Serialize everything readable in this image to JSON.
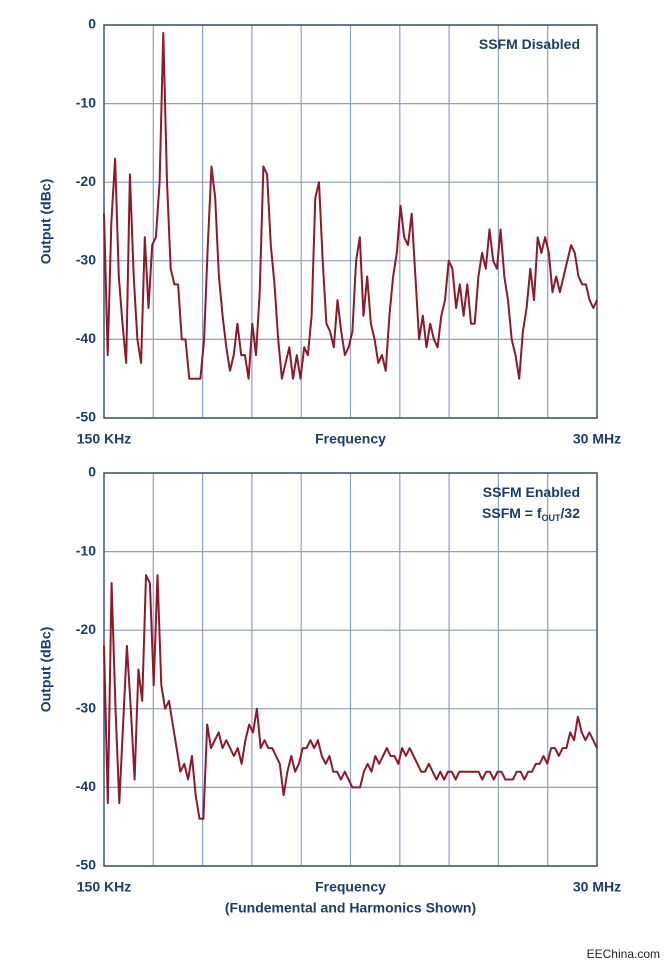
{
  "chart_data": [
    {
      "type": "line",
      "ylabel": "Output (dBc)",
      "xlabel": [
        "Frequency"
      ],
      "x_end_labels": [
        "150 KHz",
        "30 MHz"
      ],
      "annotations": [
        {
          "text": "SSFM Disabled"
        }
      ],
      "ylim": [
        -50,
        0
      ],
      "yticks": [
        0,
        -10,
        -20,
        -30,
        -40,
        -50
      ],
      "x_divisions": 10,
      "grid": true,
      "color": "#8b1a2b",
      "values": [
        -24,
        -42,
        -25,
        -17,
        -32,
        -38,
        -43,
        -19,
        -32,
        -40,
        -43,
        -27,
        -36,
        -28,
        -27,
        -20,
        -1,
        -20,
        -31,
        -33,
        -33,
        -40,
        -40,
        -45,
        -45,
        -45,
        -45,
        -40,
        -28,
        -18,
        -22,
        -32,
        -37,
        -41,
        -44,
        -42,
        -38,
        -42,
        -42,
        -45,
        -38,
        -42,
        -34,
        -18,
        -19,
        -28,
        -33,
        -40,
        -45,
        -43,
        -41,
        -45,
        -42,
        -45,
        -41,
        -42,
        -37,
        -22,
        -20,
        -30,
        -38,
        -39,
        -41,
        -35,
        -39,
        -42,
        -41,
        -39,
        -30,
        -27,
        -37,
        -32,
        -38,
        -40,
        -43,
        -42,
        -44,
        -37,
        -32,
        -29,
        -23,
        -27,
        -28,
        -24,
        -32,
        -40,
        -37,
        -41,
        -38,
        -40,
        -41,
        -37,
        -35,
        -30,
        -31,
        -36,
        -33,
        -37,
        -33,
        -38,
        -38,
        -32,
        -29,
        -31,
        -26,
        -30,
        -31,
        -26,
        -32,
        -35,
        -40,
        -42,
        -45,
        -39,
        -36,
        -31,
        -35,
        -27,
        -29,
        -27,
        -29,
        -34,
        -32,
        -34,
        -32,
        -30,
        -28,
        -29,
        -32,
        -33,
        -33,
        -35,
        -36,
        -35
      ]
    },
    {
      "type": "line",
      "ylabel": "Output (dBc)",
      "xlabel": [
        "Frequency",
        "(Fundemental and Harmonics Shown)"
      ],
      "x_end_labels": [
        "150 KHz",
        "30 MHz"
      ],
      "annotations": [
        {
          "text": "SSFM Enabled"
        },
        {
          "text": "SSFM = f",
          "sub": "OUT",
          "tail": "/32"
        }
      ],
      "ylim": [
        -50,
        0
      ],
      "yticks": [
        0,
        -10,
        -20,
        -30,
        -40,
        -50
      ],
      "x_divisions": 10,
      "grid": true,
      "color": "#8b1a2b",
      "values": [
        -22,
        -42,
        -14,
        -30,
        -42,
        -32,
        -22,
        -30,
        -39,
        -25,
        -29,
        -13,
        -14,
        -27,
        -13,
        -27,
        -30,
        -29,
        -32,
        -35,
        -38,
        -37,
        -39,
        -36,
        -41,
        -44,
        -44,
        -32,
        -35,
        -34,
        -33,
        -35,
        -34,
        -35,
        -36,
        -35,
        -37,
        -34,
        -32,
        -33,
        -30,
        -35,
        -34,
        -35,
        -35,
        -36,
        -37,
        -41,
        -38,
        -36,
        -38,
        -37,
        -35,
        -35,
        -34,
        -35,
        -34,
        -36,
        -37,
        -36,
        -38,
        -38,
        -39,
        -38,
        -39,
        -40,
        -40,
        -40,
        -38,
        -37,
        -38,
        -36,
        -37,
        -36,
        -35,
        -36,
        -36,
        -37,
        -35,
        -36,
        -35,
        -36,
        -37,
        -38,
        -38,
        -37,
        -38,
        -39,
        -38,
        -39,
        -38,
        -38,
        -39,
        -38,
        -38,
        -38,
        -38,
        -38,
        -38,
        -39,
        -38,
        -38,
        -39,
        -38,
        -38,
        -39,
        -39,
        -39,
        -38,
        -38,
        -39,
        -38,
        -38,
        -37,
        -37,
        -36,
        -37,
        -35,
        -35,
        -36,
        -35,
        -35,
        -33,
        -34,
        -31,
        -33,
        -34,
        -33,
        -34,
        -35
      ]
    }
  ],
  "watermark": "EEChina.com"
}
